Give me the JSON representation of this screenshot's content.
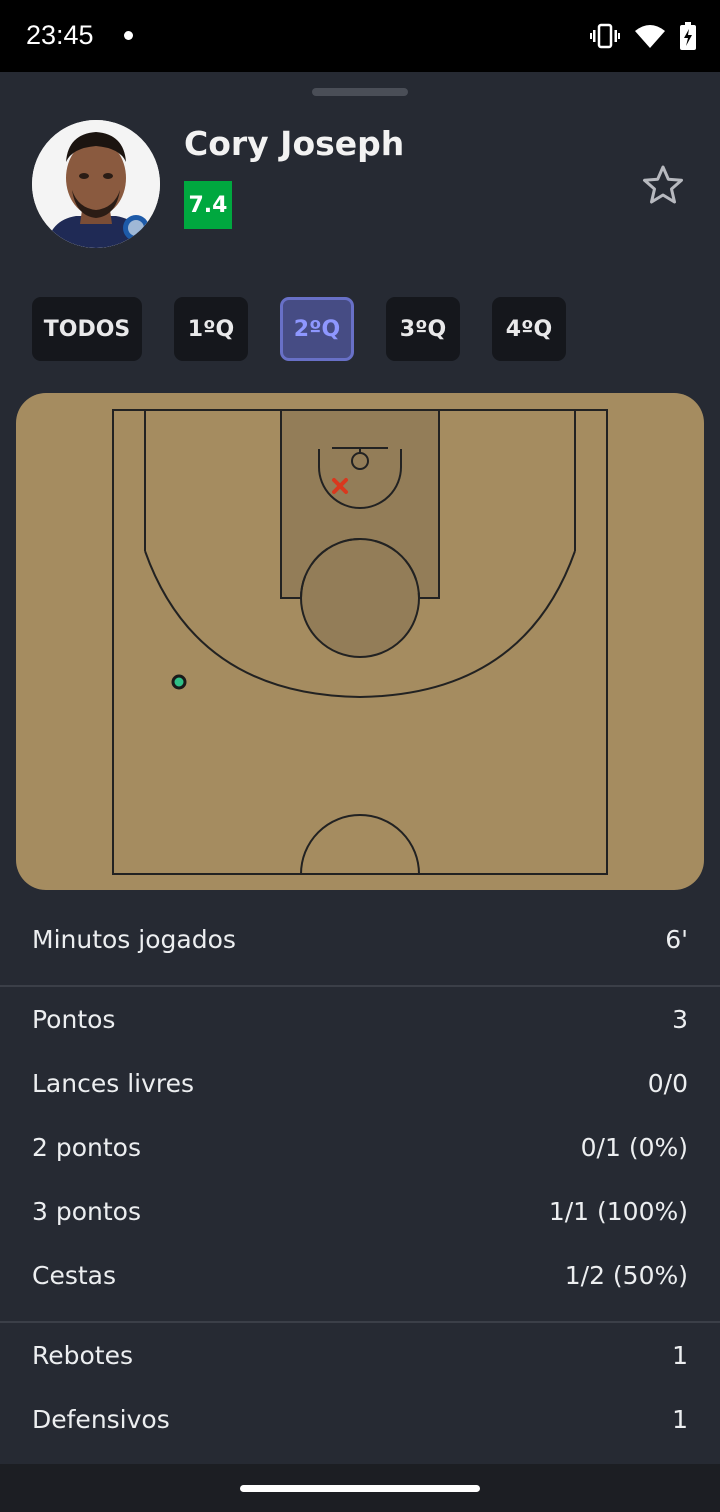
{
  "status_bar": {
    "time": "23:45"
  },
  "player": {
    "name": "Cory Joseph",
    "rating": "7.4",
    "rating_color": "#00a83f"
  },
  "tabs": [
    {
      "label": "TODOS",
      "active": false
    },
    {
      "label": "1ºQ",
      "active": false
    },
    {
      "label": "2ºQ",
      "active": true
    },
    {
      "label": "3ºQ",
      "active": false
    },
    {
      "label": "4ºQ",
      "active": false
    }
  ],
  "court": {
    "shots": [
      {
        "result": "made"
      },
      {
        "result": "missed"
      }
    ]
  },
  "stats": {
    "minutes": {
      "label": "Minutos jogados",
      "value": "6'"
    },
    "points": [
      {
        "label": "Pontos",
        "value": "3"
      },
      {
        "label": "Lances livres",
        "value": "0/0"
      },
      {
        "label": "2 pontos",
        "value": "0/1 (0%)"
      },
      {
        "label": "3 pontos",
        "value": "1/1 (100%)"
      },
      {
        "label": "Cestas",
        "value": "1/2 (50%)"
      }
    ],
    "rebounds": [
      {
        "label": "Rebotes",
        "value": "1"
      },
      {
        "label": "Defensivos",
        "value": "1"
      }
    ]
  },
  "colors": {
    "background": "#262a33",
    "court": "#a58c60",
    "accent": "#6870c7"
  }
}
